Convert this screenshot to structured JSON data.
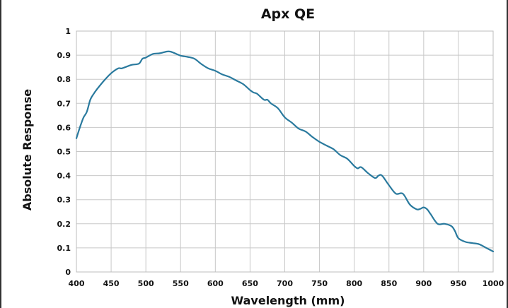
{
  "chart_data": {
    "type": "line",
    "title": "Apx QE",
    "xlabel": "Wavelength (mm)",
    "ylabel": "Absolute Response",
    "xlim": [
      400,
      1000
    ],
    "ylim": [
      0,
      1
    ],
    "x_ticks": [
      "400",
      "450",
      "500",
      "550",
      "600",
      "650",
      "700",
      "750",
      "800",
      "850",
      "900",
      "950",
      "1000"
    ],
    "y_ticks": [
      "0",
      "0.1",
      "0.2",
      "0.3",
      "0.4",
      "0.5",
      "0.6",
      "0.7",
      "0.8",
      "0.9",
      "1"
    ],
    "grid": true,
    "legend": "none",
    "line_color": "#2a7a9e",
    "series": [
      {
        "x": [
          400,
          405,
          410,
          415,
          420,
          425,
          430,
          440,
          450,
          460,
          465,
          470,
          480,
          490,
          495,
          500,
          510,
          520,
          530,
          535,
          540,
          550,
          560,
          570,
          580,
          590,
          600,
          610,
          620,
          630,
          640,
          650,
          655,
          660,
          670,
          675,
          680,
          690,
          700,
          710,
          720,
          730,
          740,
          750,
          760,
          770,
          780,
          790,
          800,
          805,
          810,
          820,
          830,
          835,
          840,
          850,
          860,
          870,
          880,
          890,
          895,
          900,
          905,
          910,
          920,
          930,
          940,
          945,
          950,
          960,
          970,
          980,
          990,
          1000
        ],
        "y": [
          0.555,
          0.6,
          0.64,
          0.665,
          0.715,
          0.74,
          0.76,
          0.795,
          0.825,
          0.845,
          0.845,
          0.85,
          0.86,
          0.865,
          0.885,
          0.89,
          0.905,
          0.908,
          0.915,
          0.915,
          0.91,
          0.898,
          0.893,
          0.885,
          0.863,
          0.845,
          0.835,
          0.82,
          0.81,
          0.795,
          0.78,
          0.755,
          0.745,
          0.74,
          0.715,
          0.715,
          0.7,
          0.68,
          0.642,
          0.62,
          0.595,
          0.583,
          0.56,
          0.54,
          0.525,
          0.51,
          0.485,
          0.47,
          0.44,
          0.43,
          0.435,
          0.41,
          0.39,
          0.4,
          0.4,
          0.36,
          0.325,
          0.325,
          0.28,
          0.26,
          0.262,
          0.268,
          0.26,
          0.24,
          0.2,
          0.2,
          0.19,
          0.17,
          0.14,
          0.125,
          0.12,
          0.115,
          0.1,
          0.085
        ]
      }
    ]
  }
}
